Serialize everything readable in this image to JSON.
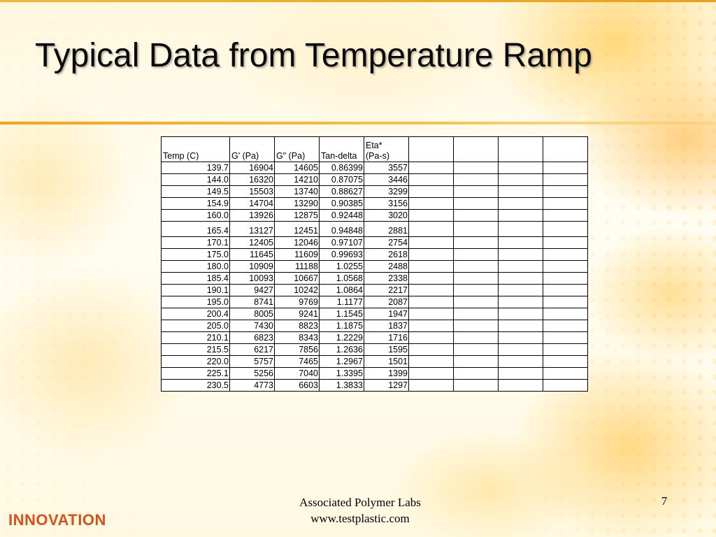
{
  "slide": {
    "title": "Typical Data from Temperature Ramp",
    "footer_line1": "Associated Polymer Labs",
    "footer_line2": "www.testplastic.com",
    "page_number": "7",
    "brand": "INNOVATION",
    "accent_color": "#f7a21b",
    "brand_color": "#d9501b"
  },
  "table": {
    "headers": [
      "Temp (C)",
      "G' (Pa)",
      "G\" (Pa)",
      "Tan-delta",
      "Eta*\n(Pa-s)",
      "",
      "",
      "",
      ""
    ],
    "rows": [
      [
        "139.7",
        "16904",
        "14605",
        "0.86399",
        "3557"
      ],
      [
        "144.0",
        "16320",
        "14210",
        "0.87075",
        "3446"
      ],
      [
        "149.5",
        "15503",
        "13740",
        "0.88627",
        "3299"
      ],
      [
        "154.9",
        "14704",
        "13290",
        "0.90385",
        "3156"
      ],
      [
        "160.0",
        "13926",
        "12875",
        "0.92448",
        "3020"
      ],
      [
        "165.4",
        "13127",
        "12451",
        "0.94848",
        "2881"
      ],
      [
        "170.1",
        "12405",
        "12046",
        "0.97107",
        "2754"
      ],
      [
        "175.0",
        "11645",
        "11609",
        "0.99693",
        "2618"
      ],
      [
        "180.0",
        "10909",
        "11188",
        "1.0255",
        "2488"
      ],
      [
        "185.4",
        "10093",
        "10667",
        "1.0568",
        "2338"
      ],
      [
        "190.1",
        "9427",
        "10242",
        "1.0864",
        "2217"
      ],
      [
        "195.0",
        "8741",
        "9769",
        "1.1177",
        "2087"
      ],
      [
        "200.4",
        "8005",
        "9241",
        "1.1545",
        "1947"
      ],
      [
        "205.0",
        "7430",
        "8823",
        "1.1875",
        "1837"
      ],
      [
        "210.1",
        "6823",
        "8343",
        "1.2229",
        "1716"
      ],
      [
        "215.5",
        "6217",
        "7856",
        "1.2636",
        "1595"
      ],
      [
        "220.0",
        "5757",
        "7465",
        "1.2967",
        "1501"
      ],
      [
        "225.1",
        "5256",
        "7040",
        "1.3395",
        "1399"
      ],
      [
        "230.5",
        "4773",
        "6603",
        "1.3833",
        "1297"
      ]
    ]
  }
}
